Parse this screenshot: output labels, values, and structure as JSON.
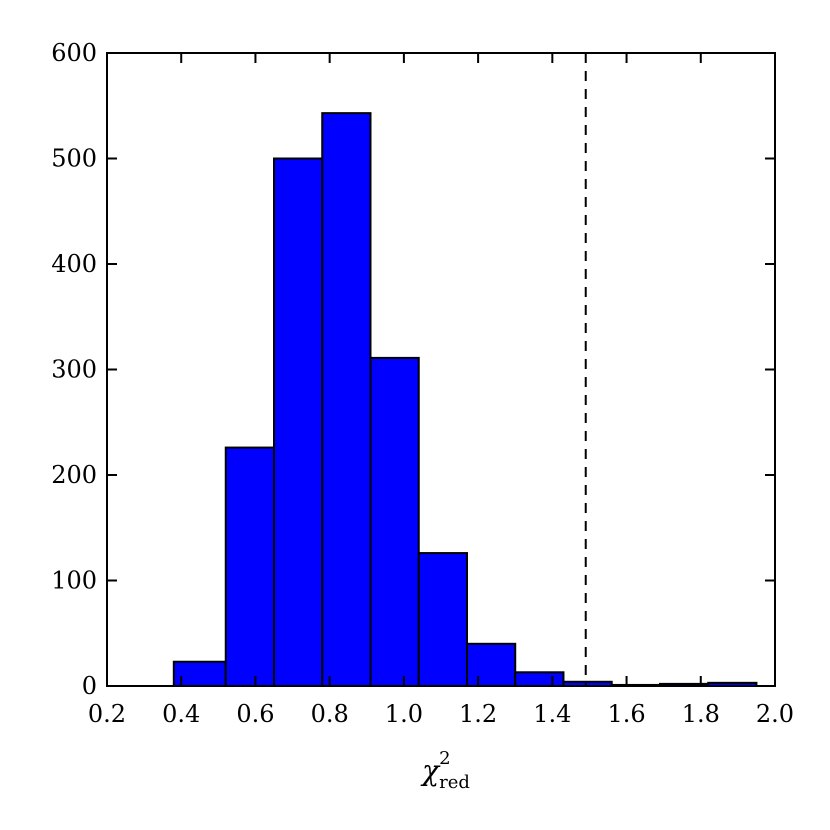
{
  "chart_data": {
    "type": "bar",
    "title": "",
    "xlabel": {
      "symbol": "χ",
      "subscript": "red",
      "superscript": "2"
    },
    "ylabel": "",
    "xlim": [
      0.2,
      2.0
    ],
    "ylim": [
      0,
      600
    ],
    "xticks": [
      "0.2",
      "0.4",
      "0.6",
      "0.8",
      "1.0",
      "1.2",
      "1.4",
      "1.6",
      "1.8",
      "2.0"
    ],
    "yticks": [
      "0",
      "100",
      "200",
      "300",
      "400",
      "500",
      "600"
    ],
    "grid": false,
    "bar_color": "#0000ff",
    "edge_color": "#000000",
    "bins": [
      {
        "x0": 0.38,
        "x1": 0.52,
        "count": 23
      },
      {
        "x0": 0.52,
        "x1": 0.65,
        "count": 226
      },
      {
        "x0": 0.65,
        "x1": 0.78,
        "count": 500
      },
      {
        "x0": 0.78,
        "x1": 0.91,
        "count": 543
      },
      {
        "x0": 0.91,
        "x1": 1.04,
        "count": 311
      },
      {
        "x0": 1.04,
        "x1": 1.17,
        "count": 126
      },
      {
        "x0": 1.17,
        "x1": 1.3,
        "count": 40
      },
      {
        "x0": 1.3,
        "x1": 1.43,
        "count": 13
      },
      {
        "x0": 1.43,
        "x1": 1.56,
        "count": 4
      },
      {
        "x0": 1.56,
        "x1": 1.69,
        "count": 1
      },
      {
        "x0": 1.69,
        "x1": 1.82,
        "count": 2
      },
      {
        "x0": 1.82,
        "x1": 1.95,
        "count": 3
      }
    ],
    "reference_line": {
      "x": 1.49,
      "style": "dashed",
      "color": "#000000"
    }
  }
}
